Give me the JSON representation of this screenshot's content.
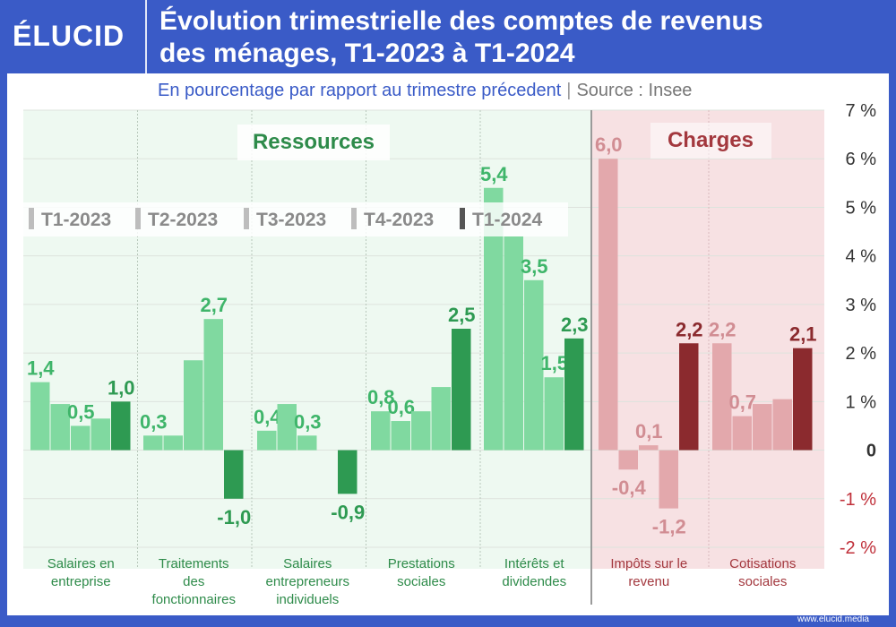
{
  "header": {
    "logo": "ÉLUCID",
    "title_line1": "Évolution trimestrielle des comptes de revenus",
    "title_line2": "des ménages, T1-2023 à T1-2024",
    "subtitle": "En pourcentage par rapport au trimestre précedent",
    "source": "Source : Insee"
  },
  "footer": {
    "url": "www.elucid.media"
  },
  "colors": {
    "ressources_light": "#80d9a0",
    "ressources_dark": "#2e9a52",
    "ressources_text": "#3fb56a",
    "ressources_label": "#2e8b4a",
    "charges_light": "#e3a8ac",
    "charges_dark": "#8b2a2e",
    "charges_text": "#d18d93",
    "charges_label": "#a3383e",
    "charges_bg": "#f7e1e3",
    "ressources_bg": "#eef9f1"
  },
  "chart_data": {
    "type": "bar",
    "ylim": [
      -2,
      7
    ],
    "y_ticks": [
      "7 %",
      "6 %",
      "5 %",
      "4 %",
      "3 %",
      "2 %",
      "1 %",
      "0",
      "-1 %",
      "-2 %"
    ],
    "y_tick_values": [
      7,
      6,
      5,
      4,
      3,
      2,
      1,
      0,
      -1,
      -2
    ],
    "section_labels": {
      "ressources": "Ressources",
      "charges": "Charges"
    },
    "series_names": [
      "T1-2023",
      "T2-2023",
      "T3-2023",
      "T4-2023",
      "T1-2024"
    ],
    "categories": [
      {
        "label": "Salaires en entreprise",
        "group": "ressources",
        "values": [
          1.4,
          0.95,
          0.5,
          0.65,
          1.0
        ],
        "labels": [
          "1,4",
          "",
          "0,5",
          "",
          "1,0"
        ]
      },
      {
        "label": "Traitements des fonctionnaires",
        "group": "ressources",
        "values": [
          0.3,
          0.3,
          1.85,
          2.7,
          -1.0
        ],
        "labels": [
          "0,3",
          "",
          "",
          "2,7",
          "-1,0"
        ]
      },
      {
        "label": "Salaires entrepreneurs individuels",
        "group": "ressources",
        "values": [
          0.4,
          0.95,
          0.3,
          0.0,
          -0.9
        ],
        "labels": [
          "0,4",
          "",
          "0,3",
          "",
          "-0,9"
        ]
      },
      {
        "label": "Prestations sociales",
        "group": "ressources",
        "values": [
          0.8,
          0.6,
          0.8,
          1.3,
          2.5
        ],
        "labels": [
          "0,8",
          "0,6",
          "",
          "",
          "2,5"
        ]
      },
      {
        "label": "Intérêts et dividendes",
        "group": "ressources",
        "values": [
          5.4,
          4.4,
          3.5,
          1.5,
          2.3
        ],
        "labels": [
          "5,4",
          "",
          "3,5",
          "1,5",
          "2,3"
        ]
      },
      {
        "label": "Impôts sur le revenu",
        "group": "charges",
        "values": [
          6.0,
          -0.4,
          0.1,
          -1.2,
          2.2
        ],
        "labels": [
          "6,0",
          "-0,4",
          "0,1",
          "-1,2",
          "2,2"
        ]
      },
      {
        "label": "Cotisations sociales",
        "group": "charges",
        "values": [
          2.2,
          0.7,
          0.95,
          1.05,
          2.1
        ],
        "labels": [
          "2,2",
          "0,7",
          "",
          "",
          "2,1"
        ]
      }
    ]
  }
}
